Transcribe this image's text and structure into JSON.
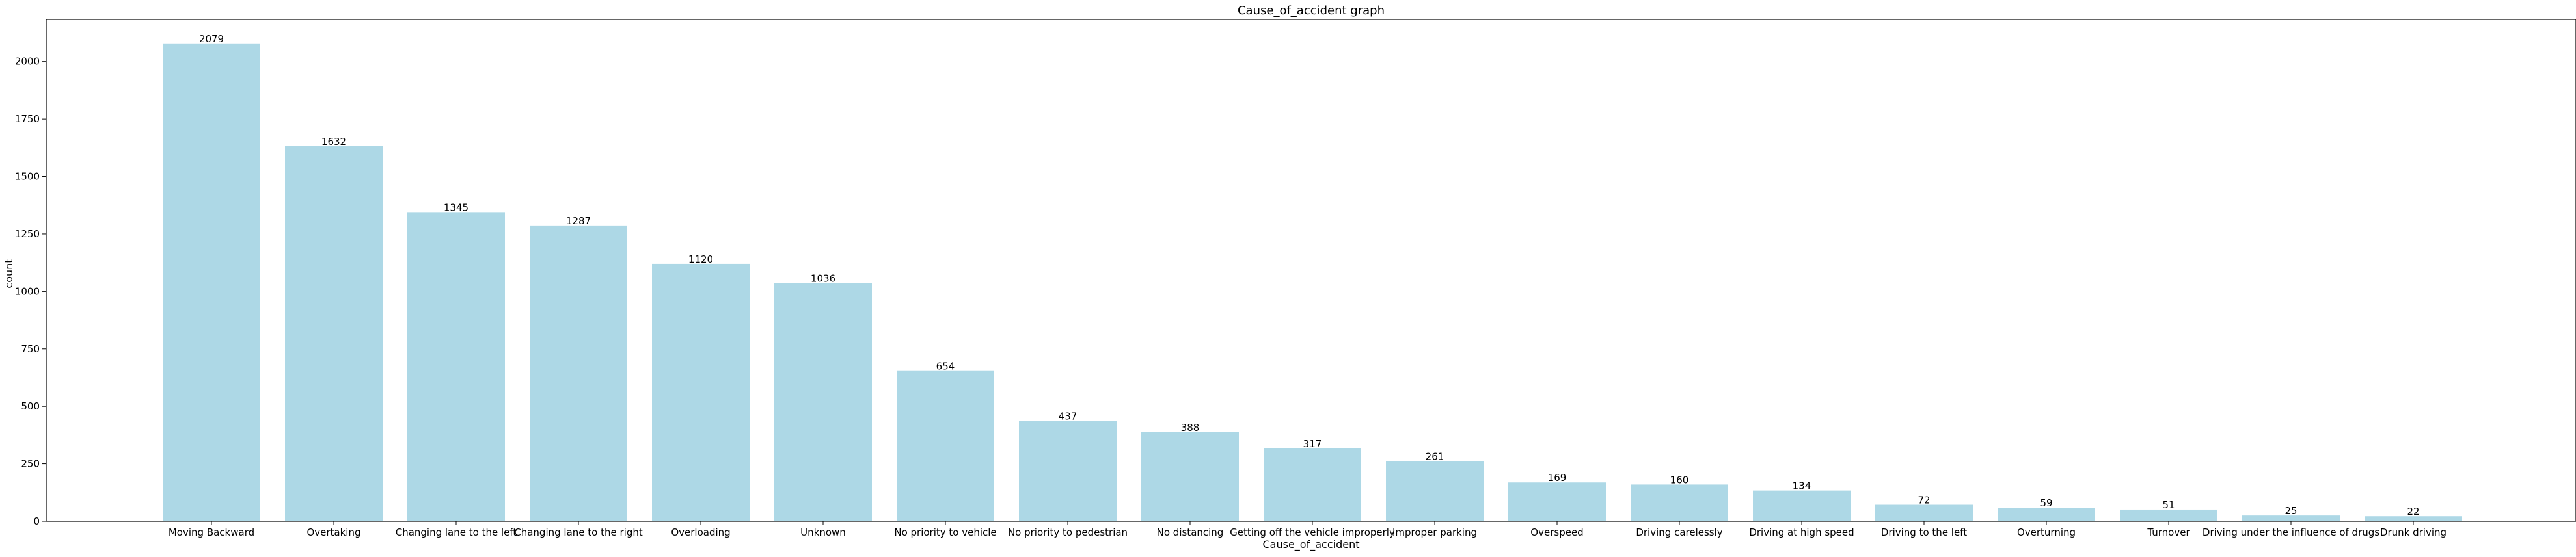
{
  "chart_data": {
    "type": "bar",
    "title": "Cause_of_accident graph",
    "xlabel": "Cause_of_accident",
    "ylabel": "count",
    "categories": [
      "Moving Backward",
      "Overtaking",
      "Changing lane to the left",
      "Changing lane to the right",
      "Overloading",
      "Unknown",
      "No priority to vehicle",
      "No priority to pedestrian",
      "No distancing",
      "Getting off the vehicle improperly",
      "Improper parking",
      "Overspeed",
      "Driving carelessly",
      "Driving at high speed",
      "Driving to the left",
      "Overturning",
      "Turnover",
      "Driving under the influence of drugs",
      "Drunk driving"
    ],
    "values": [
      2079,
      1632,
      1345,
      1287,
      1120,
      1036,
      654,
      437,
      388,
      317,
      261,
      169,
      160,
      134,
      72,
      59,
      51,
      25,
      22
    ],
    "ylim": [
      0,
      2183
    ],
    "yticks": [
      0,
      250,
      500,
      750,
      1000,
      1250,
      1500,
      1750,
      2000
    ],
    "bar_color": "#add8e6",
    "grid": false,
    "legend": "none"
  }
}
